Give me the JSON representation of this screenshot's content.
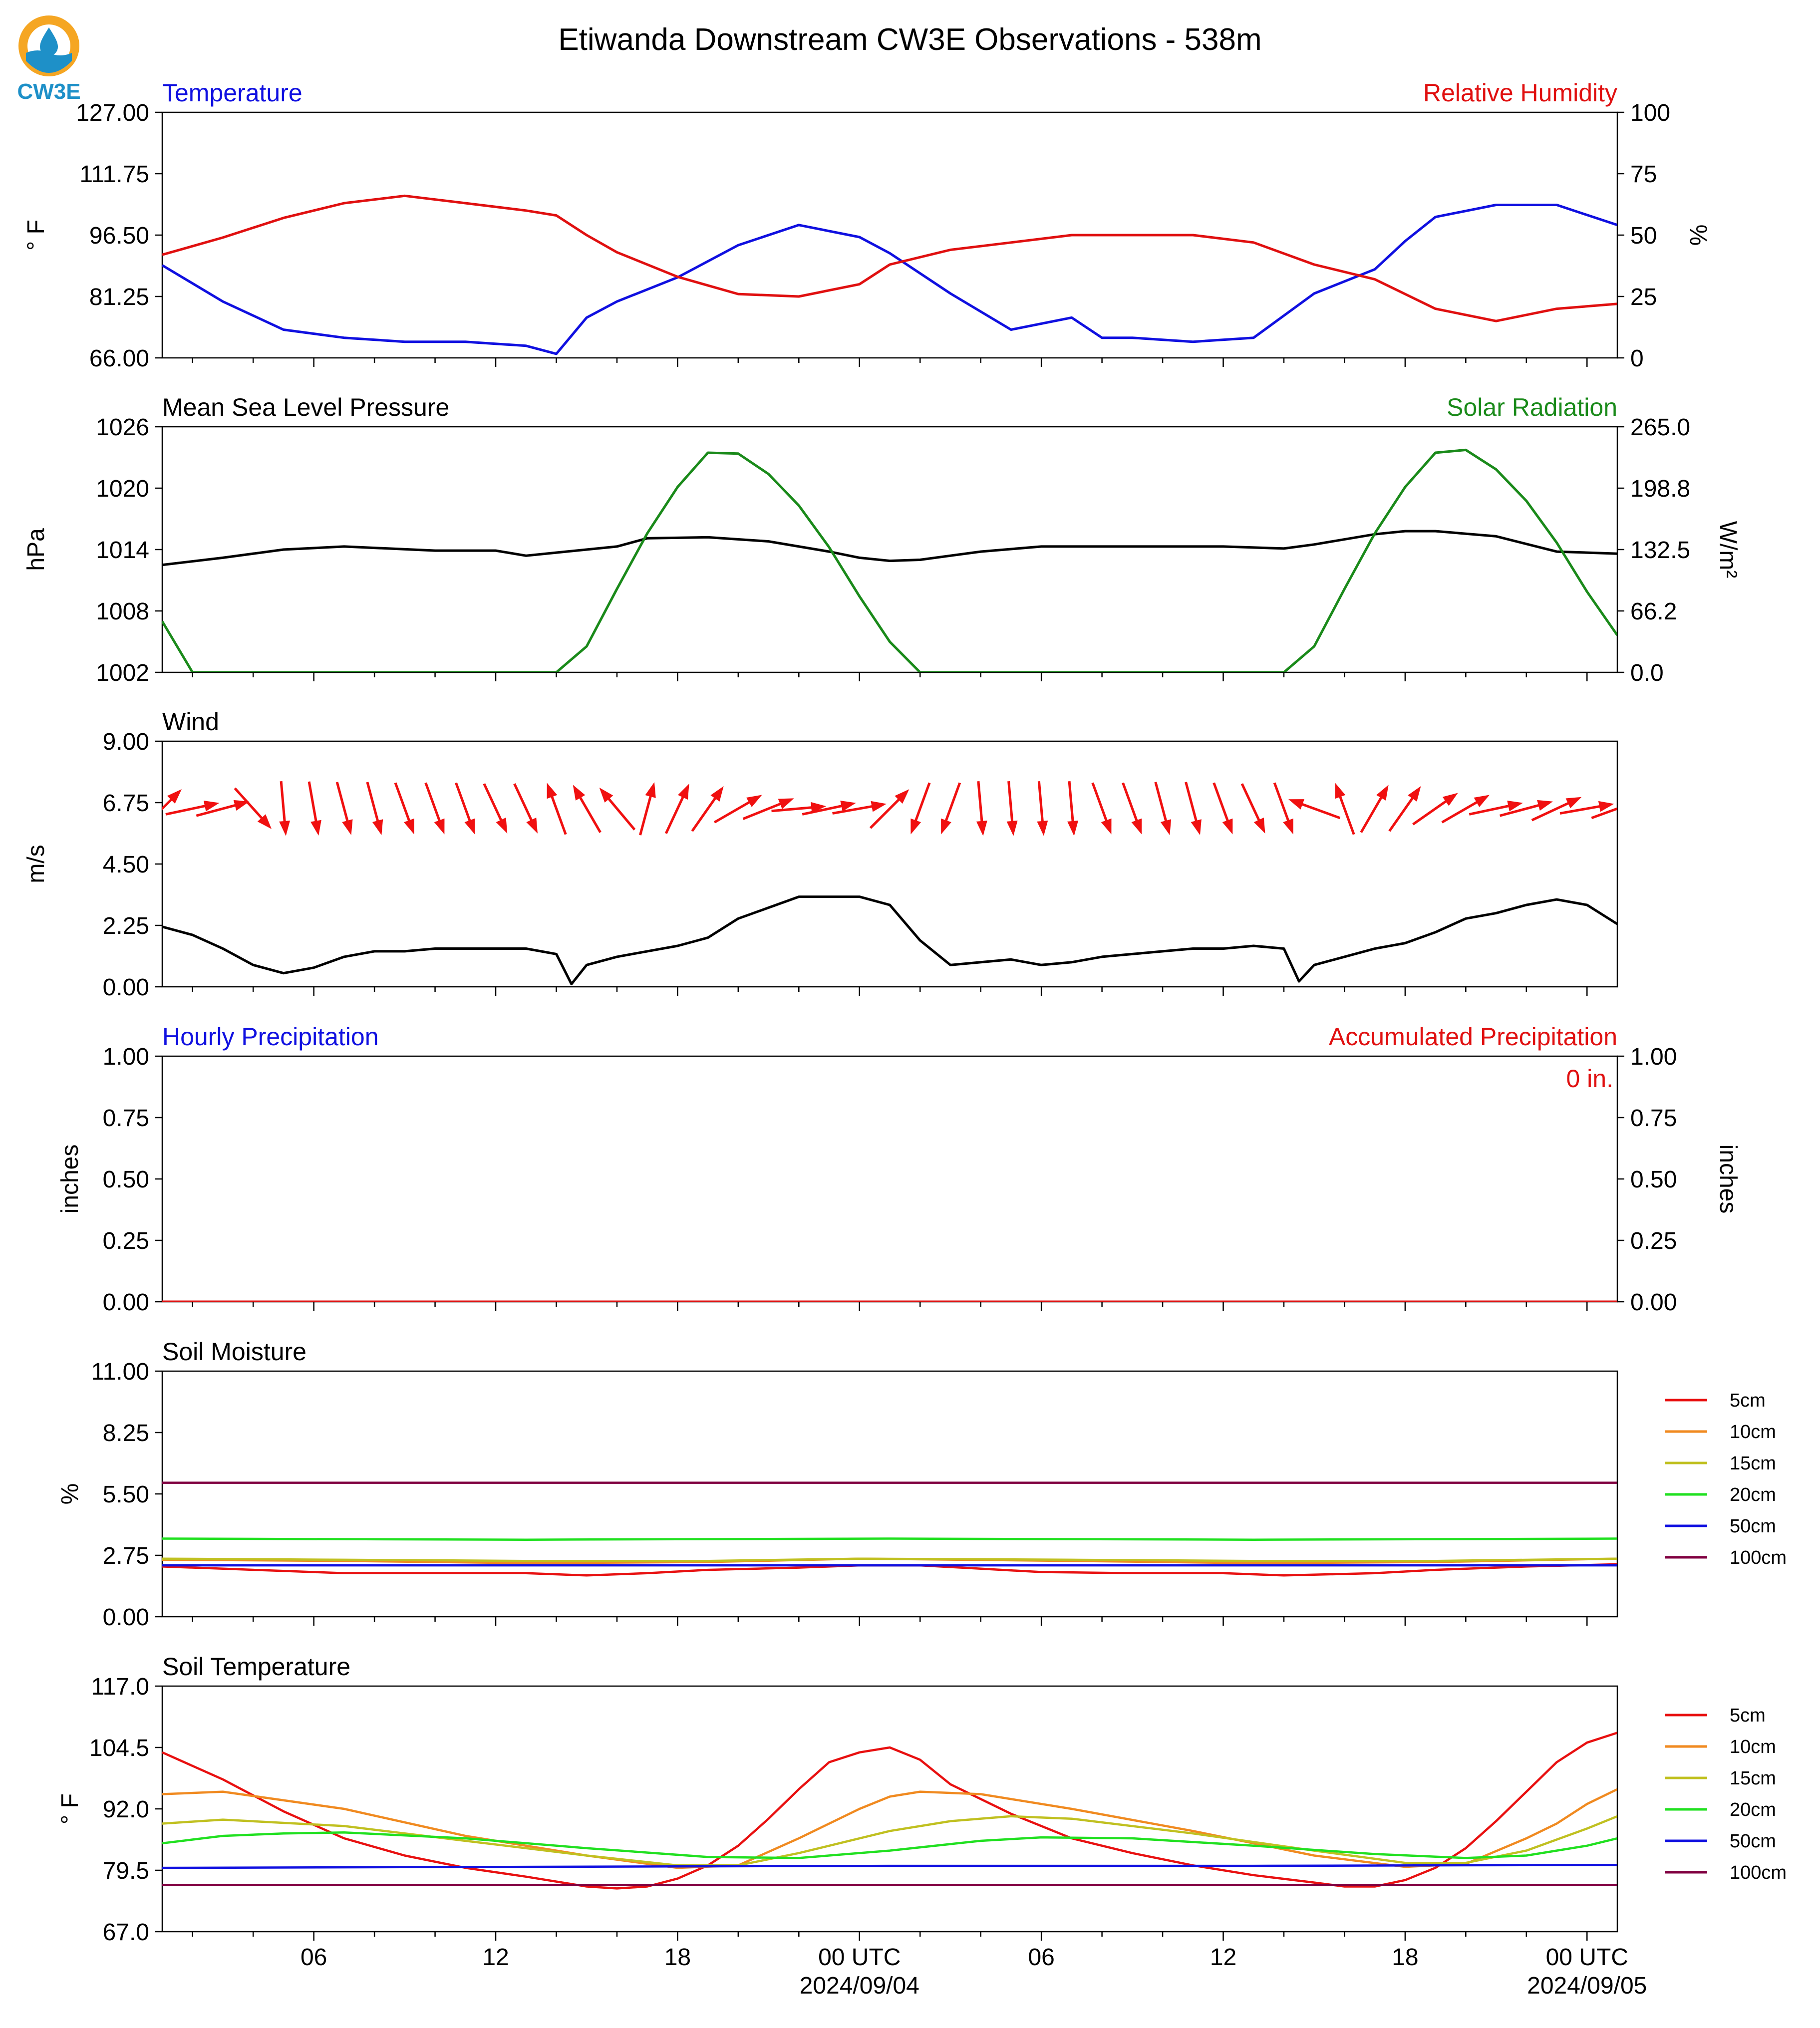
{
  "page_title": "Etiwanda Downstream CW3E Observations - 538m",
  "logo": {
    "text": "CW3E",
    "colors": {
      "ring": "#F5A623",
      "water": "#1E90C8",
      "drop": "#1E90C8"
    }
  },
  "x_axis": {
    "tick_labels": [
      "06",
      "12",
      "18",
      "00 UTC",
      "06",
      "12",
      "18",
      "00 UTC"
    ],
    "date_labels": [
      "2024/09/04",
      "2024/09/05"
    ],
    "start": "2024-09-03 01:00 UTC",
    "end": "2024-09-05 01:00 UTC"
  },
  "chart_data": [
    {
      "id": "temperature_rh",
      "type": "line",
      "title_left": "Temperature",
      "title_right": "Relative Humidity",
      "title_left_color": "#1010E0",
      "title_right_color": "#E01010",
      "ylabel_left": "° F",
      "ylabel_right": "%",
      "yticks_left": [
        "127.00",
        "111.75",
        "96.50",
        "81.25",
        "66.00"
      ],
      "yticks_right": [
        "100",
        "75",
        "50",
        "25",
        "0"
      ],
      "ylim_left": [
        66,
        127
      ],
      "ylim_right": [
        0,
        100
      ],
      "x_hours": [
        0,
        2,
        4,
        6,
        8,
        10,
        12,
        13,
        14,
        15,
        17,
        19,
        21,
        23,
        24,
        26,
        28,
        30,
        31,
        32,
        34,
        36,
        38,
        40,
        41,
        42,
        44,
        46,
        48
      ],
      "series": [
        {
          "name": "Temperature",
          "axis": "left",
          "color": "#1010E0",
          "values": [
            89,
            80,
            73,
            71,
            70,
            70,
            69,
            67,
            76,
            80,
            86,
            94,
            99,
            96,
            92,
            82,
            73,
            76,
            71,
            71,
            70,
            71,
            82,
            88,
            95,
            101,
            104,
            104,
            99
          ]
        },
        {
          "name": "Relative Humidity",
          "axis": "right",
          "color": "#E01010",
          "values": [
            42,
            49,
            57,
            63,
            66,
            63,
            60,
            58,
            50,
            43,
            33,
            26,
            25,
            30,
            38,
            44,
            47,
            50,
            50,
            50,
            50,
            47,
            38,
            32,
            26,
            20,
            15,
            20,
            22
          ]
        }
      ]
    },
    {
      "id": "pressure_solar",
      "type": "line",
      "title_left": "Mean Sea Level Pressure",
      "title_right": "Solar Radiation",
      "title_left_color": "#000000",
      "title_right_color": "#1A8A1A",
      "ylabel_left": "hPa",
      "ylabel_right": "W/m²",
      "yticks_left": [
        "1026",
        "1020",
        "1014",
        "1008",
        "1002"
      ],
      "yticks_right": [
        "265.0",
        "198.8",
        "132.5",
        "66.2",
        "0.0"
      ],
      "ylim_left": [
        1002,
        1026
      ],
      "ylim_right": [
        0,
        265
      ],
      "series": [
        {
          "name": "Mean Sea Level Pressure",
          "axis": "left",
          "color": "#000000",
          "x_hours": [
            0,
            2,
            4,
            6,
            9,
            11,
            12,
            13,
            15,
            16,
            18,
            20,
            22,
            23,
            24,
            25,
            27,
            29,
            32,
            35,
            37,
            38,
            40,
            41,
            42,
            44,
            46,
            48
          ],
          "values": [
            1012.5,
            1013.2,
            1014.0,
            1014.3,
            1013.9,
            1013.9,
            1013.4,
            1013.7,
            1014.3,
            1015.1,
            1015.2,
            1014.8,
            1013.8,
            1013.2,
            1012.9,
            1013.0,
            1013.8,
            1014.3,
            1014.3,
            1014.3,
            1014.1,
            1014.5,
            1015.5,
            1015.8,
            1015.8,
            1015.3,
            1013.8,
            1013.6
          ]
        },
        {
          "name": "Solar Radiation",
          "axis": "right",
          "color": "#1A8A1A",
          "x_hours": [
            0,
            1,
            13,
            14,
            15,
            16,
            17,
            18,
            19,
            20,
            21,
            22,
            23,
            24,
            25,
            26,
            37,
            38,
            39,
            40,
            41,
            42,
            43,
            44,
            45,
            46,
            47,
            48
          ],
          "values": [
            55,
            0,
            0,
            28,
            90,
            150,
            200,
            237,
            236,
            214,
            180,
            135,
            82,
            33,
            0,
            0,
            0,
            28,
            90,
            150,
            200,
            237,
            240,
            219,
            185,
            140,
            87,
            40
          ]
        }
      ]
    },
    {
      "id": "wind",
      "type": "line",
      "title_left": "Wind",
      "title_left_color": "#000000",
      "ylabel_left": "m/s",
      "yticks_left": [
        "9.00",
        "6.75",
        "4.50",
        "2.25",
        "0.00"
      ],
      "ylim_left": [
        0,
        9
      ],
      "series": [
        {
          "name": "Wind speed",
          "axis": "left",
          "color": "#000000",
          "x_hours": [
            0,
            1,
            2,
            3,
            4,
            5,
            6,
            7,
            8,
            9,
            10,
            11,
            12,
            13,
            13.5,
            14,
            15,
            16,
            17,
            18,
            19,
            20,
            21,
            22,
            23,
            24,
            25,
            26,
            27,
            28,
            29,
            30,
            31,
            32,
            33,
            34,
            35,
            36,
            37,
            37.5,
            38,
            39,
            40,
            41,
            42,
            43,
            44,
            45,
            46,
            47,
            48
          ],
          "values": [
            2.2,
            1.9,
            1.4,
            0.8,
            0.5,
            0.7,
            1.1,
            1.3,
            1.3,
            1.4,
            1.4,
            1.4,
            1.4,
            1.2,
            0.1,
            0.8,
            1.1,
            1.3,
            1.5,
            1.8,
            2.5,
            2.9,
            3.3,
            3.3,
            3.3,
            3.0,
            1.7,
            0.8,
            0.9,
            1.0,
            0.8,
            0.9,
            1.1,
            1.2,
            1.3,
            1.4,
            1.4,
            1.5,
            1.4,
            0.2,
            0.8,
            1.1,
            1.4,
            1.6,
            2.0,
            2.5,
            2.7,
            3.0,
            3.2,
            3.0,
            2.3
          ]
        }
      ],
      "wind_vectors": {
        "color": "#F01010",
        "x_hours": [
          0,
          1,
          2,
          3,
          4,
          5,
          6,
          7,
          8,
          9,
          10,
          11,
          12,
          13,
          14,
          15,
          16,
          17,
          18,
          19,
          20,
          21,
          22,
          23,
          24,
          25,
          26,
          27,
          28,
          29,
          30,
          31,
          32,
          33,
          34,
          35,
          36,
          37,
          38,
          39,
          40,
          41,
          42,
          43,
          44,
          45,
          46,
          47,
          48
        ],
        "bearing_deg": [
          45,
          78,
          75,
          138,
          175,
          170,
          165,
          165,
          160,
          160,
          160,
          155,
          155,
          340,
          330,
          320,
          15,
          25,
          35,
          60,
          68,
          85,
          78,
          80,
          45,
          200,
          200,
          175,
          175,
          175,
          175,
          160,
          160,
          165,
          165,
          160,
          155,
          160,
          290,
          340,
          30,
          35,
          55,
          60,
          78,
          75,
          65,
          80,
          70
        ]
      }
    },
    {
      "id": "precipitation",
      "type": "line",
      "title_left": "Hourly Precipitation",
      "title_right": "Accumulated Precipitation",
      "title_left_color": "#1010E0",
      "title_right_color": "#E01010",
      "ylabel_left": "inches",
      "ylabel_right": "inches",
      "yticks_left": [
        "1.00",
        "0.75",
        "0.50",
        "0.25",
        "0.00"
      ],
      "yticks_right": [
        "1.00",
        "0.75",
        "0.50",
        "0.25",
        "0.00"
      ],
      "ylim_left": [
        0,
        1
      ],
      "ylim_right": [
        0,
        1
      ],
      "annotation": "0 in.",
      "series": [
        {
          "name": "Hourly Precipitation",
          "axis": "left",
          "color": "#1010E0",
          "x_hours": [
            0,
            48
          ],
          "values": [
            0,
            0
          ]
        },
        {
          "name": "Accumulated Precipitation",
          "axis": "right",
          "color": "#E01010",
          "x_hours": [
            0,
            48
          ],
          "values": [
            0,
            0
          ]
        }
      ]
    },
    {
      "id": "soil_moisture",
      "type": "line",
      "title_left": "Soil Moisture",
      "title_left_color": "#000000",
      "ylabel_left": "%",
      "yticks_left": [
        "11.00",
        "8.25",
        "5.50",
        "2.75",
        "0.00"
      ],
      "ylim_left": [
        0,
        11
      ],
      "legend_position": "right",
      "series": [
        {
          "name": "5cm",
          "color": "#E81010",
          "x_hours": [
            0,
            2,
            4,
            6,
            9,
            12,
            14,
            16,
            18,
            21,
            23,
            25,
            27,
            29,
            32,
            35,
            37,
            40,
            42,
            45,
            48
          ],
          "values": [
            2.25,
            2.15,
            2.05,
            1.95,
            1.95,
            1.95,
            1.85,
            1.95,
            2.1,
            2.2,
            2.3,
            2.3,
            2.15,
            2.0,
            1.95,
            1.95,
            1.85,
            1.95,
            2.1,
            2.25,
            2.35
          ]
        },
        {
          "name": "10cm",
          "color": "#F08A20",
          "x_hours": [
            0,
            6,
            12,
            18,
            23,
            30,
            36,
            42,
            48
          ],
          "values": [
            2.55,
            2.5,
            2.4,
            2.45,
            2.6,
            2.5,
            2.4,
            2.45,
            2.6
          ]
        },
        {
          "name": "15cm",
          "color": "#C0C020",
          "x_hours": [
            0,
            6,
            12,
            18,
            23,
            30,
            36,
            42,
            48
          ],
          "values": [
            2.6,
            2.55,
            2.5,
            2.5,
            2.6,
            2.55,
            2.5,
            2.5,
            2.6
          ]
        },
        {
          "name": "20cm",
          "color": "#20E020",
          "x_hours": [
            0,
            12,
            24,
            36,
            48
          ],
          "values": [
            3.5,
            3.45,
            3.5,
            3.45,
            3.5
          ]
        },
        {
          "name": "50cm",
          "color": "#1010E0",
          "x_hours": [
            0,
            48
          ],
          "values": [
            2.3,
            2.3
          ]
        },
        {
          "name": "100cm",
          "color": "#800040",
          "x_hours": [
            0,
            48
          ],
          "values": [
            6.0,
            6.0
          ]
        }
      ]
    },
    {
      "id": "soil_temperature",
      "type": "line",
      "title_left": "Soil Temperature",
      "title_left_color": "#000000",
      "ylabel_left": "° F",
      "yticks_left": [
        "117.0",
        "104.5",
        "92.0",
        "79.5",
        "67.0"
      ],
      "ylim_left": [
        67,
        117
      ],
      "legend_position": "right",
      "series": [
        {
          "name": "5cm",
          "color": "#E81010",
          "x_hours": [
            0,
            2,
            4,
            6,
            8,
            10,
            12,
            14,
            15,
            16,
            17,
            18,
            19,
            20,
            21,
            22,
            23,
            24,
            25,
            26,
            28,
            30,
            32,
            34,
            36,
            38,
            39,
            40,
            41,
            42,
            43,
            44,
            45,
            46,
            47,
            48
          ],
          "values": [
            103.5,
            98,
            91.5,
            86,
            82.5,
            80,
            78.2,
            76.2,
            75.8,
            76.2,
            77.8,
            80.5,
            84.5,
            90,
            96,
            101.5,
            103.5,
            104.5,
            102,
            97,
            91,
            86,
            83,
            80.5,
            78.5,
            77,
            76.2,
            76.2,
            77.5,
            80,
            84,
            89.5,
            95.5,
            101.5,
            105.5,
            107.5
          ]
        },
        {
          "name": "10cm",
          "color": "#F08A20",
          "x_hours": [
            0,
            2,
            6,
            10,
            14,
            17,
            19,
            21,
            23,
            24,
            25,
            27,
            30,
            34,
            38,
            41,
            43,
            45,
            46,
            47,
            48
          ],
          "values": [
            95,
            95.5,
            92,
            86.5,
            82.5,
            80,
            80.5,
            86,
            92,
            94.5,
            95.5,
            95,
            92,
            87.5,
            82.5,
            80.2,
            80.8,
            86,
            89,
            93,
            96
          ]
        },
        {
          "name": "15cm",
          "color": "#C0C020",
          "x_hours": [
            0,
            2,
            6,
            10,
            14,
            17,
            19,
            21,
            24,
            26,
            28,
            30,
            34,
            38,
            41,
            43,
            45,
            47,
            48
          ],
          "values": [
            89,
            89.8,
            88.5,
            85.5,
            82.5,
            80.5,
            80.5,
            83,
            87.5,
            89.5,
            90.5,
            90,
            87,
            83.5,
            81,
            81,
            83.5,
            88,
            90.5
          ]
        },
        {
          "name": "20cm",
          "color": "#20E020",
          "x_hours": [
            0,
            2,
            4,
            6,
            10,
            14,
            18,
            21,
            24,
            27,
            29,
            32,
            36,
            40,
            43,
            45,
            47,
            48
          ],
          "values": [
            85,
            86.5,
            87,
            87.2,
            86,
            84,
            82.2,
            82,
            83.5,
            85.5,
            86.2,
            86,
            84.5,
            82.8,
            82,
            82.5,
            84.5,
            86
          ]
        },
        {
          "name": "50cm",
          "color": "#1010E0",
          "x_hours": [
            0,
            12,
            24,
            36,
            48
          ],
          "values": [
            80.0,
            80.2,
            80.4,
            80.4,
            80.6
          ]
        },
        {
          "name": "100cm",
          "color": "#800040",
          "x_hours": [
            0,
            48
          ],
          "values": [
            76.5,
            76.5
          ]
        }
      ]
    }
  ]
}
